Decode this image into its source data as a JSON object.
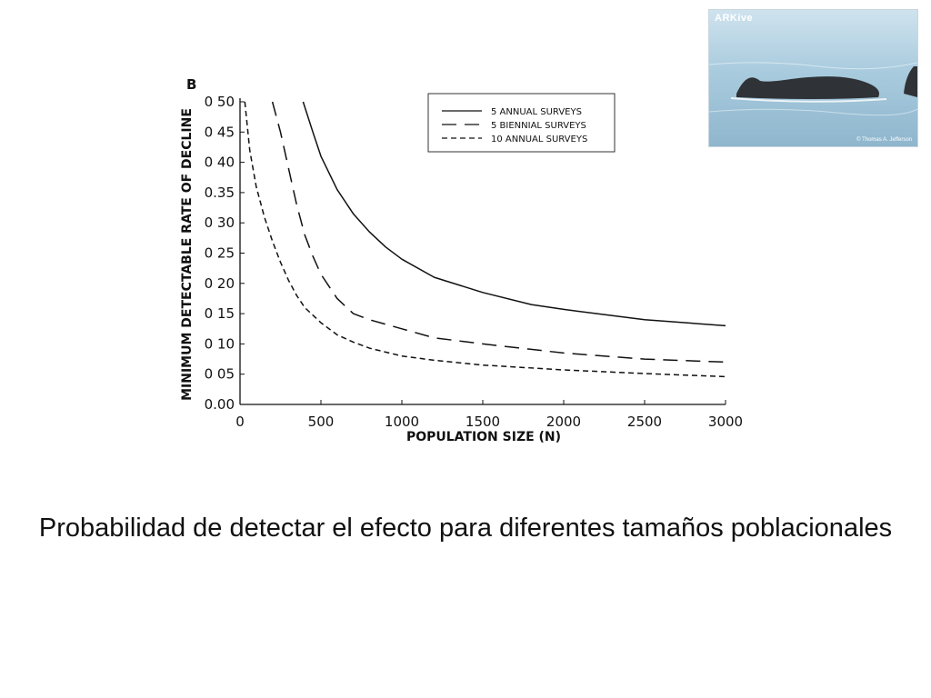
{
  "chart_data": {
    "type": "line",
    "panel_label": "B",
    "ylabel": "MINIMUM DETECTABLE RATE OF DECLINE",
    "xlabel": "POPULATION SIZE (N)",
    "xlim": [
      0,
      3000
    ],
    "ylim": [
      0,
      0.5
    ],
    "xticks": [
      0,
      500,
      1000,
      1500,
      2000,
      2500,
      3000
    ],
    "xtick_labels": [
      "0",
      "500",
      "1000",
      "1500",
      "2000",
      "2500",
      "3000"
    ],
    "yticks": [
      0,
      0.05,
      0.1,
      0.15,
      0.2,
      0.25,
      0.3,
      0.35,
      0.4,
      0.45,
      0.5
    ],
    "ytick_labels": [
      "0.00",
      "0 05",
      "0 10",
      "0 15",
      "0 20",
      "0 25",
      "0 30",
      "0.35",
      "0 40",
      "0 45",
      "0 50"
    ],
    "grid": false,
    "legend_position": "top-center",
    "series": [
      {
        "name": "5 ANNUAL SURVEYS",
        "style": "solid",
        "x": [
          390,
          450,
          500,
          600,
          700,
          800,
          900,
          1000,
          1200,
          1500,
          1800,
          2000,
          2500,
          3000
        ],
        "y": [
          0.5,
          0.45,
          0.41,
          0.355,
          0.315,
          0.285,
          0.26,
          0.24,
          0.21,
          0.185,
          0.165,
          0.157,
          0.14,
          0.13
        ]
      },
      {
        "name": "5 BIENNIAL SURVEYS",
        "style": "dashed",
        "x": [
          200,
          250,
          300,
          350,
          400,
          450,
          500,
          600,
          700,
          800,
          1000,
          1200,
          1500,
          2000,
          2500,
          3000
        ],
        "y": [
          0.5,
          0.45,
          0.39,
          0.33,
          0.28,
          0.245,
          0.215,
          0.175,
          0.15,
          0.14,
          0.125,
          0.11,
          0.1,
          0.085,
          0.075,
          0.07
        ]
      },
      {
        "name": "10 ANNUAL SURVEYS",
        "style": "dotted-dash",
        "x": [
          30,
          60,
          100,
          150,
          200,
          250,
          300,
          350,
          400,
          500,
          600,
          700,
          800,
          1000,
          1200,
          1500,
          2000,
          2500,
          3000
        ],
        "y": [
          0.5,
          0.42,
          0.36,
          0.31,
          0.27,
          0.235,
          0.205,
          0.18,
          0.16,
          0.135,
          0.115,
          0.103,
          0.093,
          0.08,
          0.073,
          0.065,
          0.057,
          0.051,
          0.046
        ]
      }
    ]
  },
  "photo": {
    "brand": "ARKive",
    "credit": "© Thomas A. Jefferson",
    "water_color": "#a9cbde",
    "animal_color": "#2f3236"
  },
  "caption": "Probabilidad de detectar el efecto para diferentes tamaños poblacionales"
}
